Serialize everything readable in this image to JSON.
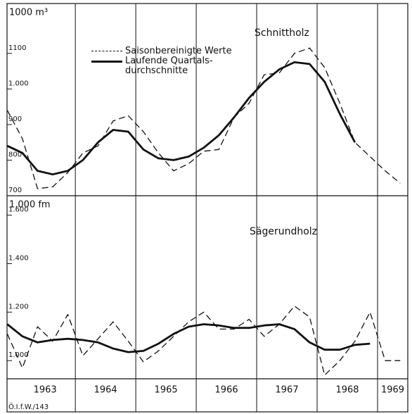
{
  "chart_data": [
    {
      "type": "line",
      "title": "Schnittholz",
      "y_label": "1000 m³",
      "x": [
        1962.875,
        1963.125,
        1963.375,
        1963.625,
        1963.875,
        1964.125,
        1964.375,
        1964.625,
        1964.875,
        1965.125,
        1965.375,
        1965.625,
        1965.875,
        1966.125,
        1966.375,
        1966.625,
        1966.875,
        1967.125,
        1967.375,
        1967.625,
        1967.875,
        1968.125,
        1968.375,
        1968.625,
        1968.875,
        1969.125,
        1969.375
      ],
      "series": [
        {
          "name": "Saisonbereinigte Werte",
          "color": "#111",
          "dash": true,
          "values": [
            940,
            860,
            720,
            725,
            765,
            820,
            840,
            910,
            925,
            880,
            820,
            770,
            790,
            825,
            830,
            920,
            960,
            1040,
            1045,
            1100,
            1115,
            1060,
            960,
            850,
            810,
            770,
            735
          ]
        },
        {
          "name": "Laufende Quartals-\ndurchschnitte",
          "color": "#111",
          "dash": false,
          "values": [
            840,
            820,
            770,
            760,
            770,
            800,
            850,
            885,
            880,
            830,
            805,
            800,
            810,
            835,
            870,
            920,
            975,
            1020,
            1055,
            1075,
            1070,
            1020,
            930,
            850,
            null,
            null,
            null
          ]
        }
      ],
      "xlim": [
        1962.87,
        1969.5
      ],
      "ylim": [
        700,
        1240
      ],
      "yticks": [
        700,
        800,
        900,
        {
          "value": 1000,
          "label": "1.000"
        },
        1100
      ],
      "legend": "top-left"
    },
    {
      "type": "line",
      "title": "Sägerundholz",
      "y_label": "1.000 fm",
      "x": [
        1962.875,
        1963.125,
        1963.375,
        1963.625,
        1963.875,
        1964.125,
        1964.375,
        1964.625,
        1964.875,
        1965.125,
        1965.375,
        1965.625,
        1965.875,
        1966.125,
        1966.375,
        1966.625,
        1966.875,
        1967.125,
        1967.375,
        1967.625,
        1967.875,
        1968.125,
        1968.375,
        1968.625,
        1968.875,
        1969.125,
        1969.375
      ],
      "series": [
        {
          "color": "#111",
          "dash": true,
          "values": [
            1110,
            970,
            1140,
            1080,
            1190,
            1020,
            1090,
            1160,
            1080,
            995,
            1040,
            1100,
            1160,
            1200,
            1130,
            1130,
            1170,
            1100,
            1150,
            1225,
            1180,
            940,
            1000,
            1080,
            1200,
            1000,
            1000
          ]
        },
        {
          "color": "#111",
          "dash": false,
          "values": [
            1150,
            1100,
            1075,
            1085,
            1090,
            1085,
            1075,
            1050,
            1035,
            1040,
            1070,
            1110,
            1140,
            1150,
            1145,
            1135,
            1135,
            1145,
            1150,
            1130,
            1075,
            1045,
            1045,
            1065,
            1070,
            null,
            null
          ]
        }
      ],
      "xlim": [
        1962.87,
        1969.5
      ],
      "ylim": [
        925,
        1680
      ],
      "yticks": [
        {
          "value": 1000,
          "label": "1.000"
        },
        {
          "value": 1200,
          "label": "1.200"
        },
        {
          "value": 1400,
          "label": "1.400"
        },
        {
          "value": 1600,
          "label": "1.600"
        }
      ],
      "xticks": [
        {
          "value": 1963.5,
          "label": "1963"
        },
        {
          "value": 1964.5,
          "label": "1964"
        },
        {
          "value": 1965.5,
          "label": "1965"
        },
        {
          "value": 1966.5,
          "label": "1966"
        },
        {
          "value": 1967.5,
          "label": "1967"
        },
        {
          "value": 1968.5,
          "label": "1968"
        },
        {
          "value": 1969.25,
          "label": "1969"
        }
      ],
      "x_grid": [
        1964,
        1965,
        1966,
        1967,
        1968,
        1969
      ]
    }
  ],
  "footer": "Ö.I.f.W./143"
}
